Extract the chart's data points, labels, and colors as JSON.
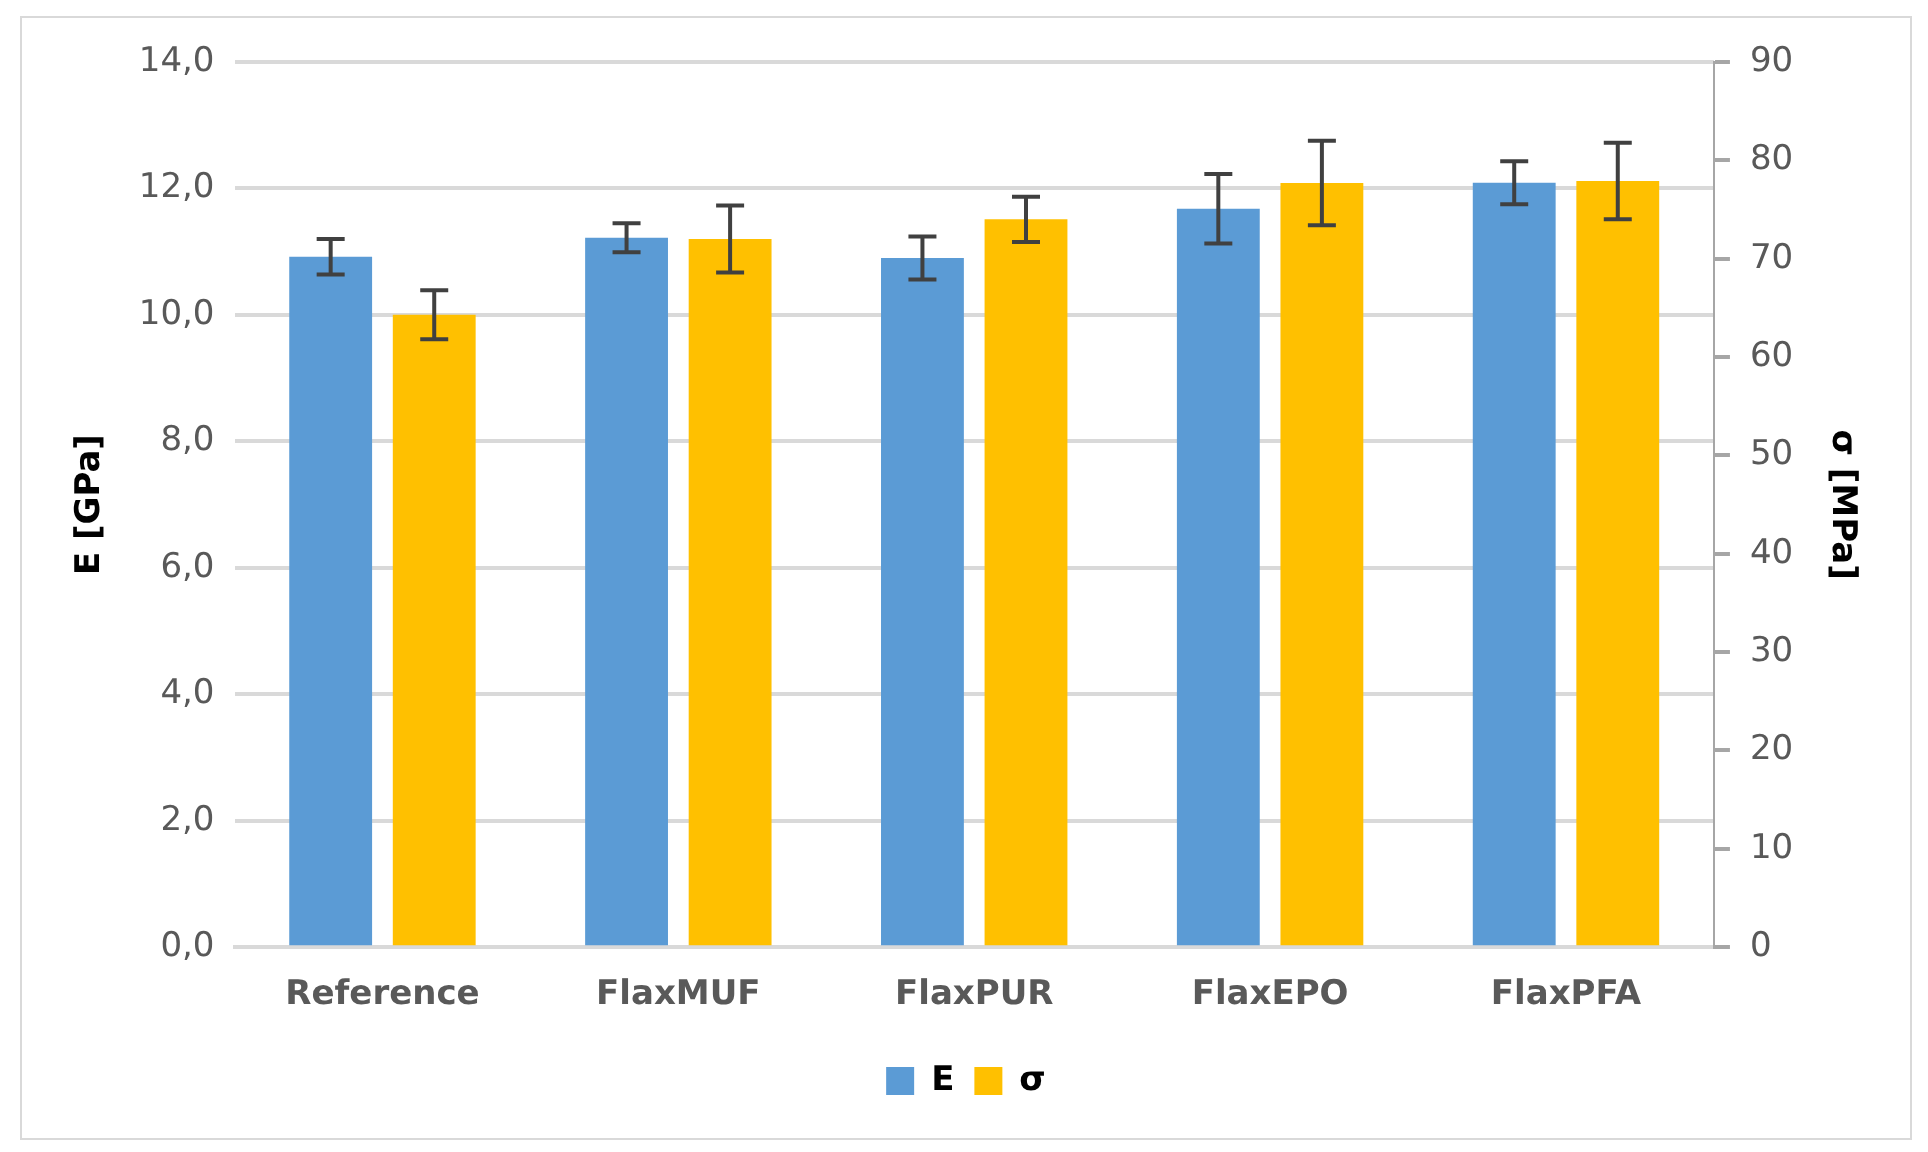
{
  "chart_data": {
    "type": "bar",
    "categories": [
      "Reference",
      "FlaxMUF",
      "FlaxPUR",
      "FlaxEPO",
      "FlaxPFA"
    ],
    "ylabel": "E [GPa]",
    "y2label": "σ [MPa]",
    "series": [
      {
        "name": "E",
        "color": "#5b9bd5",
        "values": [
          10.92,
          11.22,
          10.9,
          11.68,
          12.09
        ],
        "errors": [
          0.28,
          0.23,
          0.34,
          0.55,
          0.34
        ]
      },
      {
        "name": "σ",
        "color": "#ffc000",
        "axis": "y2",
        "values": [
          64.3,
          72.0,
          74.0,
          77.7,
          77.9
        ],
        "errors": [
          2.5,
          3.4,
          2.3,
          4.3,
          3.9
        ]
      }
    ],
    "ylim": [
      0,
      14
    ],
    "yticks": [
      {
        "value": 0,
        "label": "0,0"
      },
      {
        "value": 2,
        "label": "2,0"
      },
      {
        "value": 4,
        "label": "4,0"
      },
      {
        "value": 6,
        "label": "6,0"
      },
      {
        "value": 8,
        "label": "8,0"
      },
      {
        "value": 10,
        "label": "10,0"
      },
      {
        "value": 12,
        "label": "12,0"
      },
      {
        "value": 14,
        "label": "14,0"
      }
    ],
    "y2lim": [
      0,
      90
    ],
    "y2ticks": [
      0,
      10,
      20,
      30,
      40,
      50,
      60,
      70,
      80,
      90
    ],
    "grid": "y",
    "legend": "bottom"
  }
}
